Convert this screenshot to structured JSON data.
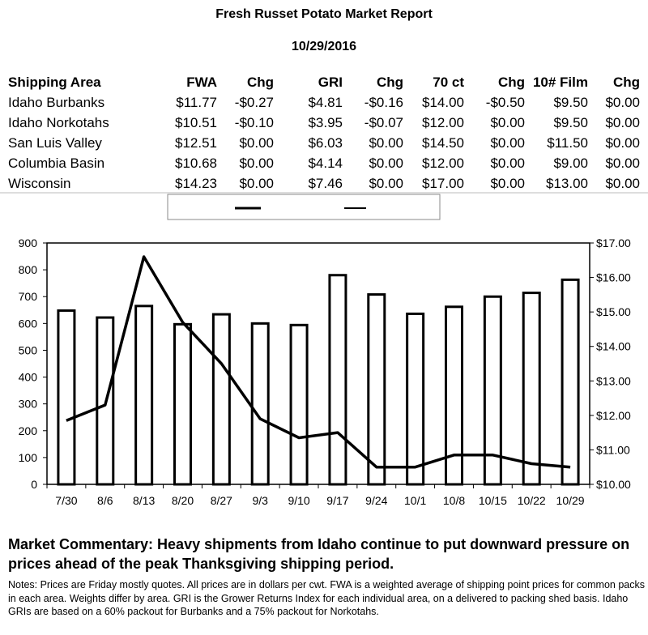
{
  "report": {
    "title": "Fresh Russet Potato Market Report",
    "date": "10/29/2016"
  },
  "table": {
    "headers": [
      "Shipping Area",
      "FWA",
      "Chg",
      "GRI",
      "Chg",
      "70 ct",
      "Chg",
      "10# Film",
      "Chg"
    ],
    "rows": [
      [
        "Idaho Burbanks",
        "$11.77",
        "-$0.27",
        "$4.81",
        "-$0.16",
        "$14.00",
        "-$0.50",
        "$9.50",
        "$0.00"
      ],
      [
        "Idaho Norkotahs",
        "$10.51",
        "-$0.10",
        "$3.95",
        "-$0.07",
        "$12.00",
        "$0.00",
        "$9.50",
        "$0.00"
      ],
      [
        "San Luis Valley",
        "$12.51",
        "$0.00",
        "$6.03",
        "$0.00",
        "$14.50",
        "$0.00",
        "$11.50",
        "$0.00"
      ],
      [
        "Columbia Basin",
        "$10.68",
        "$0.00",
        "$4.14",
        "$0.00",
        "$12.00",
        "$0.00",
        "$9.00",
        "$0.00"
      ],
      [
        "Wisconsin",
        "$14.23",
        "$0.00",
        "$7.46",
        "$0.00",
        "$17.00",
        "$0.00",
        "$13.00",
        "$0.00"
      ]
    ]
  },
  "chart_data": {
    "type": "bar",
    "title": "",
    "categories": [
      "7/30",
      "8/6",
      "8/13",
      "8/20",
      "8/27",
      "9/3",
      "9/10",
      "9/17",
      "9/24",
      "10/1",
      "10/8",
      "10/15",
      "10/22",
      "10/29"
    ],
    "series": [
      {
        "type": "bar",
        "axis": "left",
        "values": [
          648,
          622,
          665,
          597,
          634,
          600,
          594,
          780,
          708,
          636,
          662,
          700,
          714,
          763
        ]
      },
      {
        "type": "line",
        "axis": "right",
        "values": [
          11.85,
          12.3,
          16.6,
          14.7,
          13.5,
          11.9,
          11.35,
          11.5,
          10.5,
          10.5,
          10.85,
          10.85,
          10.6,
          10.5
        ]
      }
    ],
    "y_left": {
      "ylim": [
        0,
        900
      ],
      "ticks": [
        "0",
        "100",
        "200",
        "300",
        "400",
        "500",
        "600",
        "700",
        "800",
        "900"
      ]
    },
    "y_right": {
      "ylim": [
        10,
        17
      ],
      "ticks": [
        "$10.00",
        "$11.00",
        "$12.00",
        "$13.00",
        "$14.00",
        "$15.00",
        "$16.00",
        "$17.00"
      ]
    },
    "grid": false,
    "legend": "top-center"
  },
  "commentary": "Market Commentary: Heavy shipments from Idaho continue to put downward pressure on prices ahead of the peak Thanksgiving shipping period.",
  "notes": "Notes: Prices are Friday mostly quotes. All prices are in dollars per cwt. FWA is a weighted average of shipping point prices for  common packs in each area. Weights differ by area. GRI is the Grower Returns Index for each individual area, on a delivered to packing shed basis. Idaho GRIs are based on a 60% packout for Burbanks and a 75% packout for Norkotahs.",
  "colors": {
    "ink": "#000000",
    "background": "#ffffff",
    "legend_border": "#888888"
  }
}
